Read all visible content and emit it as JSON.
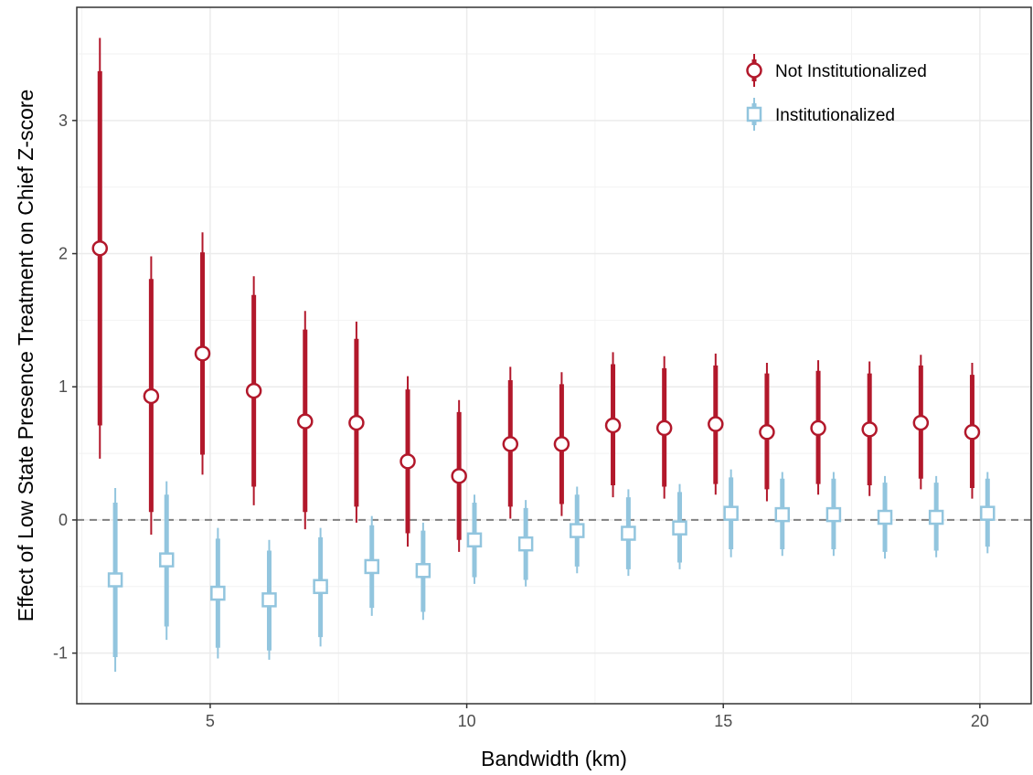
{
  "chart_data": {
    "type": "scatter",
    "xlabel": "Bandwidth (km)",
    "ylabel": "Effect of Low State Presence Treatment on Chief Z-score",
    "xlim": [
      2.4,
      21.0
    ],
    "ylim": [
      -1.38,
      3.85
    ],
    "x_ticks": [
      5,
      10,
      15,
      20
    ],
    "y_ticks": [
      -1,
      0,
      1,
      2,
      3
    ],
    "x_tick_labels": [
      "5",
      "10",
      "15",
      "20"
    ],
    "y_tick_labels": [
      "-1",
      "0",
      "1",
      "2",
      "3"
    ],
    "grid": true,
    "reference_line": {
      "y": 0,
      "style": "dashed"
    },
    "legend_position": "top-right",
    "x_offset_between_series": 0.3,
    "colors": {
      "not_institutionalized": "#b2182b",
      "institutionalized": "#92c5de"
    },
    "series": [
      {
        "name": "Not Institutionalized",
        "marker": "circle",
        "color": "#b2182b",
        "points": [
          {
            "x": 3,
            "y": 2.04,
            "ci90": [
              0.71,
              3.37
            ],
            "ci95": [
              0.46,
              3.62
            ]
          },
          {
            "x": 4,
            "y": 0.93,
            "ci90": [
              0.06,
              1.81
            ],
            "ci95": [
              -0.11,
              1.98
            ]
          },
          {
            "x": 5,
            "y": 1.25,
            "ci90": [
              0.49,
              2.01
            ],
            "ci95": [
              0.34,
              2.16
            ]
          },
          {
            "x": 6,
            "y": 0.97,
            "ci90": [
              0.25,
              1.69
            ],
            "ci95": [
              0.11,
              1.83
            ]
          },
          {
            "x": 7,
            "y": 0.74,
            "ci90": [
              0.06,
              1.43
            ],
            "ci95": [
              -0.07,
              1.57
            ]
          },
          {
            "x": 8,
            "y": 0.73,
            "ci90": [
              0.1,
              1.36
            ],
            "ci95": [
              -0.02,
              1.49
            ]
          },
          {
            "x": 9,
            "y": 0.44,
            "ci90": [
              -0.1,
              0.98
            ],
            "ci95": [
              -0.2,
              1.08
            ]
          },
          {
            "x": 10,
            "y": 0.33,
            "ci90": [
              -0.15,
              0.81
            ],
            "ci95": [
              -0.24,
              0.9
            ]
          },
          {
            "x": 11,
            "y": 0.57,
            "ci90": [
              0.1,
              1.05
            ],
            "ci95": [
              0.01,
              1.15
            ]
          },
          {
            "x": 12,
            "y": 0.57,
            "ci90": [
              0.12,
              1.02
            ],
            "ci95": [
              0.03,
              1.11
            ]
          },
          {
            "x": 13,
            "y": 0.71,
            "ci90": [
              0.26,
              1.17
            ],
            "ci95": [
              0.17,
              1.26
            ]
          },
          {
            "x": 14,
            "y": 0.69,
            "ci90": [
              0.25,
              1.14
            ],
            "ci95": [
              0.16,
              1.23
            ]
          },
          {
            "x": 15,
            "y": 0.72,
            "ci90": [
              0.27,
              1.16
            ],
            "ci95": [
              0.19,
              1.25
            ]
          },
          {
            "x": 16,
            "y": 0.66,
            "ci90": [
              0.23,
              1.1
            ],
            "ci95": [
              0.14,
              1.18
            ]
          },
          {
            "x": 17,
            "y": 0.69,
            "ci90": [
              0.27,
              1.12
            ],
            "ci95": [
              0.19,
              1.2
            ]
          },
          {
            "x": 18,
            "y": 0.68,
            "ci90": [
              0.26,
              1.1
            ],
            "ci95": [
              0.18,
              1.19
            ]
          },
          {
            "x": 19,
            "y": 0.73,
            "ci90": [
              0.31,
              1.16
            ],
            "ci95": [
              0.23,
              1.24
            ]
          },
          {
            "x": 20,
            "y": 0.66,
            "ci90": [
              0.24,
              1.09
            ],
            "ci95": [
              0.16,
              1.18
            ]
          }
        ]
      },
      {
        "name": "Institutionalized",
        "marker": "square",
        "color": "#92c5de",
        "points": [
          {
            "x": 3,
            "y": -0.45,
            "ci90": [
              -1.03,
              0.13
            ],
            "ci95": [
              -1.14,
              0.24
            ]
          },
          {
            "x": 4,
            "y": -0.3,
            "ci90": [
              -0.8,
              0.19
            ],
            "ci95": [
              -0.9,
              0.29
            ]
          },
          {
            "x": 5,
            "y": -0.55,
            "ci90": [
              -0.96,
              -0.14
            ],
            "ci95": [
              -1.04,
              -0.06
            ]
          },
          {
            "x": 6,
            "y": -0.6,
            "ci90": [
              -0.98,
              -0.23
            ],
            "ci95": [
              -1.05,
              -0.15
            ]
          },
          {
            "x": 7,
            "y": -0.5,
            "ci90": [
              -0.88,
              -0.13
            ],
            "ci95": [
              -0.95,
              -0.06
            ]
          },
          {
            "x": 8,
            "y": -0.35,
            "ci90": [
              -0.66,
              -0.04
            ],
            "ci95": [
              -0.72,
              0.03
            ]
          },
          {
            "x": 9,
            "y": -0.38,
            "ci90": [
              -0.69,
              -0.08
            ],
            "ci95": [
              -0.75,
              -0.02
            ]
          },
          {
            "x": 10,
            "y": -0.15,
            "ci90": [
              -0.43,
              0.13
            ],
            "ci95": [
              -0.48,
              0.19
            ]
          },
          {
            "x": 11,
            "y": -0.18,
            "ci90": [
              -0.45,
              0.09
            ],
            "ci95": [
              -0.5,
              0.15
            ]
          },
          {
            "x": 12,
            "y": -0.08,
            "ci90": [
              -0.35,
              0.19
            ],
            "ci95": [
              -0.4,
              0.25
            ]
          },
          {
            "x": 13,
            "y": -0.1,
            "ci90": [
              -0.37,
              0.17
            ],
            "ci95": [
              -0.42,
              0.23
            ]
          },
          {
            "x": 14,
            "y": -0.06,
            "ci90": [
              -0.32,
              0.21
            ],
            "ci95": [
              -0.37,
              0.27
            ]
          },
          {
            "x": 15,
            "y": 0.05,
            "ci90": [
              -0.22,
              0.32
            ],
            "ci95": [
              -0.28,
              0.38
            ]
          },
          {
            "x": 16,
            "y": 0.04,
            "ci90": [
              -0.22,
              0.31
            ],
            "ci95": [
              -0.27,
              0.36
            ]
          },
          {
            "x": 17,
            "y": 0.04,
            "ci90": [
              -0.22,
              0.31
            ],
            "ci95": [
              -0.27,
              0.36
            ]
          },
          {
            "x": 18,
            "y": 0.02,
            "ci90": [
              -0.24,
              0.28
            ],
            "ci95": [
              -0.29,
              0.33
            ]
          },
          {
            "x": 19,
            "y": 0.02,
            "ci90": [
              -0.23,
              0.28
            ],
            "ci95": [
              -0.28,
              0.33
            ]
          },
          {
            "x": 20,
            "y": 0.05,
            "ci90": [
              -0.2,
              0.31
            ],
            "ci95": [
              -0.25,
              0.36
            ]
          }
        ]
      }
    ]
  }
}
